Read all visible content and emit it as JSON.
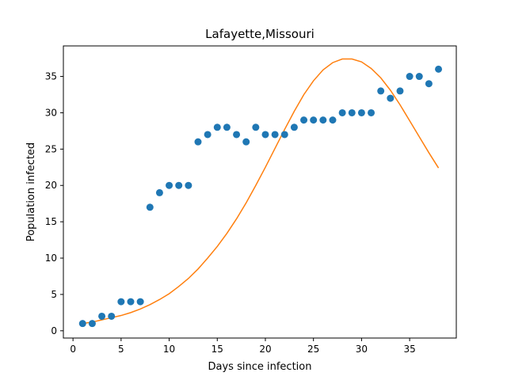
{
  "chart_data": {
    "type": "scatter",
    "title": "Lafayette,Missouri",
    "xlabel": "Days since infection",
    "ylabel": "Population infected",
    "xlim": [
      -1,
      39.85
    ],
    "ylim": [
      -1.0,
      39.2
    ],
    "xticks": [
      0,
      5,
      10,
      15,
      20,
      25,
      30,
      35
    ],
    "yticks": [
      0,
      5,
      10,
      15,
      20,
      25,
      30,
      35
    ],
    "grid": false,
    "series": [
      {
        "kind": "scatter",
        "color": "#1f77b4",
        "x": [
          1,
          2,
          3,
          4,
          5,
          6,
          7,
          8,
          9,
          10,
          11,
          12,
          13,
          14,
          15,
          16,
          17,
          18,
          19,
          20,
          21,
          22,
          23,
          24,
          25,
          26,
          27,
          28,
          29,
          30,
          31,
          32,
          33,
          34,
          35,
          36,
          37,
          38
        ],
        "y": [
          1,
          1,
          2,
          2,
          4,
          4,
          4,
          17,
          19,
          20,
          20,
          20,
          26,
          27,
          28,
          28,
          27,
          26,
          28,
          27,
          27,
          27,
          28,
          29,
          29,
          29,
          29,
          30,
          30,
          30,
          30,
          33,
          32,
          33,
          35,
          35,
          34,
          36
        ]
      },
      {
        "kind": "line",
        "color": "#ff7f0e",
        "x": [
          1,
          2,
          3,
          4,
          5,
          6,
          7,
          8,
          9,
          10,
          11,
          12,
          13,
          14,
          15,
          16,
          17,
          18,
          19,
          20,
          21,
          22,
          23,
          24,
          25,
          26,
          27,
          28,
          29,
          30,
          31,
          32,
          33,
          34,
          35,
          36,
          37,
          38
        ],
        "y": [
          1.0,
          1.2,
          1.5,
          1.8,
          2.1,
          2.5,
          3.0,
          3.6,
          4.3,
          5.1,
          6.1,
          7.2,
          8.5,
          10.0,
          11.6,
          13.4,
          15.4,
          17.6,
          20.0,
          22.5,
          25.1,
          27.7,
          30.2,
          32.5,
          34.4,
          35.9,
          36.9,
          37.4,
          37.4,
          37.0,
          36.1,
          34.8,
          33.1,
          31.1,
          28.9,
          26.7,
          24.5,
          22.4
        ]
      }
    ]
  }
}
